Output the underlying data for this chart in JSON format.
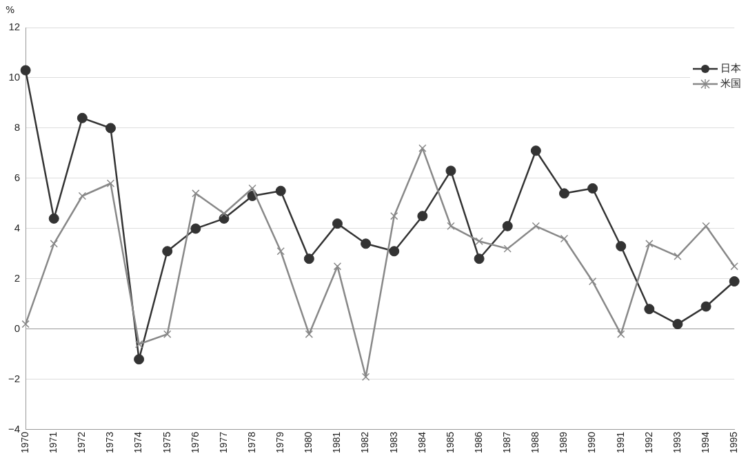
{
  "chart_data": {
    "type": "line",
    "ylabel": "%",
    "categories": [
      "1970",
      "1971",
      "1972",
      "1973",
      "1974",
      "1975",
      "1976",
      "1977",
      "1978",
      "1979",
      "1980",
      "1981",
      "1982",
      "1983",
      "1984",
      "1985",
      "1986",
      "1987",
      "1988",
      "1989",
      "1990",
      "1991",
      "1992",
      "1993",
      "1994",
      "1995"
    ],
    "series": [
      {
        "name": "日本",
        "color": "#333333",
        "marker": "circle",
        "values": [
          10.3,
          4.4,
          8.4,
          8.0,
          -1.2,
          3.1,
          4.0,
          4.4,
          5.3,
          5.5,
          2.8,
          4.2,
          3.4,
          3.1,
          4.5,
          6.3,
          2.8,
          4.1,
          7.1,
          5.4,
          5.6,
          3.3,
          0.8,
          0.2,
          0.9,
          1.9
        ]
      },
      {
        "name": "米国",
        "color": "#888888",
        "marker": "cross",
        "values": [
          0.2,
          3.4,
          5.3,
          5.8,
          -0.6,
          -0.2,
          5.4,
          4.6,
          5.6,
          3.1,
          -0.2,
          2.5,
          -1.9,
          4.5,
          7.2,
          4.1,
          3.5,
          3.2,
          4.1,
          3.6,
          1.9,
          -0.2,
          3.4,
          2.9,
          4.1,
          2.5
        ]
      }
    ],
    "ylim": [
      -4,
      12
    ],
    "yticks": [
      -4,
      -2,
      0,
      2,
      4,
      6,
      8,
      10,
      12
    ],
    "grid": "y",
    "legend": "top right",
    "line_style": "solid"
  }
}
